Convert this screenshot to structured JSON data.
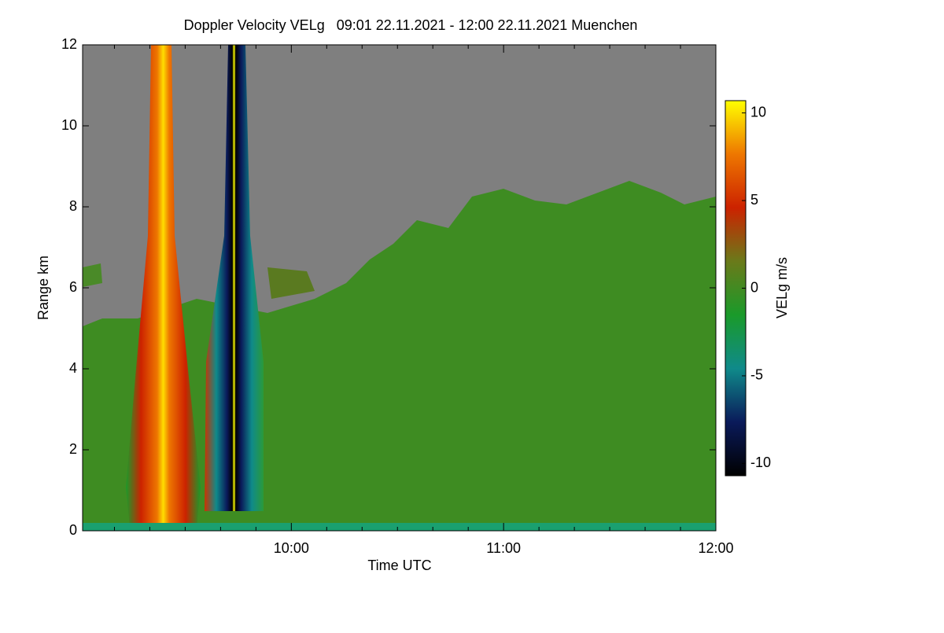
{
  "chart_data": {
    "type": "heatmap",
    "title": "Doppler Velocity VELg   09:01 22.11.2021 - 12:00 22.11.2021 Muenchen",
    "x_label": "Time UTC",
    "y_label": "Range km",
    "xlim": [
      9.0167,
      12.0
    ],
    "xticks": [
      {
        "value": 10,
        "label": "10:00"
      },
      {
        "value": 11,
        "label": "11:00"
      },
      {
        "value": 12,
        "label": "12:00"
      }
    ],
    "ylim": [
      0,
      12
    ],
    "yticks": [
      0,
      2,
      4,
      6,
      8,
      10,
      12
    ],
    "colorbar_label": "VELg m/s",
    "zlim": [
      -10.7,
      10.7
    ],
    "zticks": [
      -10,
      -5,
      0,
      5,
      10
    ],
    "colorscale": [
      "#000000",
      "#0a1a5a",
      "#0f8a8a",
      "#1a9a2a",
      "#6a7a1a",
      "#cc2200",
      "#ee7700",
      "#ffff00"
    ]
  }
}
